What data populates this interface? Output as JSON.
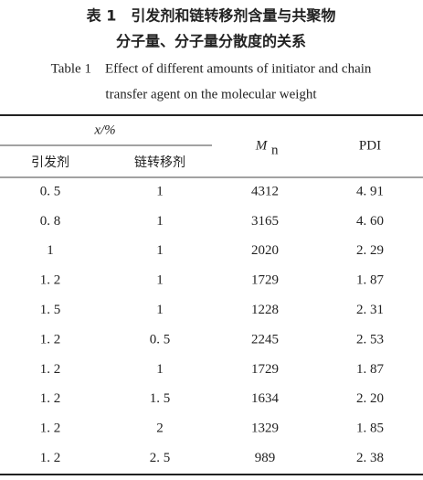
{
  "caption": {
    "title_zh": [
      "表 1　引发剂和链转移剂含量与共聚物",
      "分子量、分子量分散度的关系"
    ],
    "title_en": [
      "Table 1　Effect of different amounts of initiator and chain",
      "transfer agent on the molecular weight"
    ]
  },
  "table": {
    "group_header": "x/%",
    "sub_headers": [
      "引发剂",
      "链转移剂"
    ],
    "mn_header": {
      "symbol": "M",
      "subscript": "n"
    },
    "pdi_header": "PDI",
    "rows": [
      [
        "0. 5",
        "1",
        "4312",
        "4. 91"
      ],
      [
        "0. 8",
        "1",
        "3165",
        "4. 60"
      ],
      [
        "1",
        "1",
        "2020",
        "2. 29"
      ],
      [
        "1. 2",
        "1",
        "1729",
        "1. 87"
      ],
      [
        "1. 5",
        "1",
        "1228",
        "2. 31"
      ],
      [
        "1. 2",
        "0. 5",
        "2245",
        "2. 53"
      ],
      [
        "1. 2",
        "1",
        "1729",
        "1. 87"
      ],
      [
        "1. 2",
        "1. 5",
        "1634",
        "2. 20"
      ],
      [
        "1. 2",
        "2",
        "1329",
        "1. 85"
      ],
      [
        "1. 2",
        "2. 5",
        "989",
        "2. 38"
      ]
    ]
  }
}
